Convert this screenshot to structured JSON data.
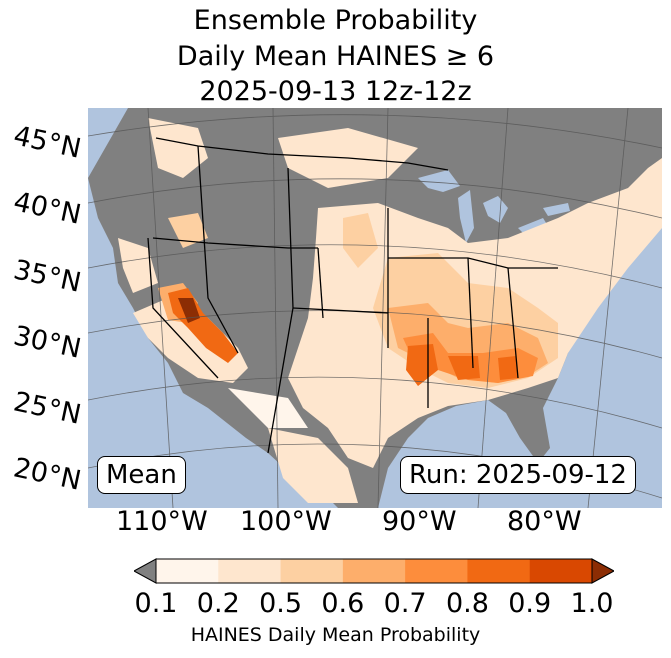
{
  "title": {
    "line1": "Ensemble Probability",
    "line2": "Daily Mean HAINES ≥ 6",
    "line3": "2025-09-13 12z-12z"
  },
  "map": {
    "lat_labels": [
      "45°N",
      "40°N",
      "35°N",
      "30°N",
      "25°N",
      "20°N"
    ],
    "lon_labels": [
      "110°W",
      "100°W",
      "90°W",
      "80°W"
    ],
    "stat_label": "Mean",
    "run_label": "Run: 2025-09-12",
    "colors": {
      "ocean": "#b0c4de",
      "land_missing": "#808080",
      "grid": "#555555",
      "border": "#000000"
    }
  },
  "colorbar": {
    "label": "HAINES Daily Mean Probability",
    "ticks": [
      "0.1",
      "0.2",
      "0.5",
      "0.6",
      "0.7",
      "0.8",
      "0.9",
      "1.0"
    ],
    "under_color": "#808080",
    "colors": [
      "#fff5eb",
      "#fee6ce",
      "#fdd0a2",
      "#fdae6b",
      "#fd8d3c",
      "#f16913",
      "#d94801"
    ],
    "over_color": "#8c2d04"
  }
}
